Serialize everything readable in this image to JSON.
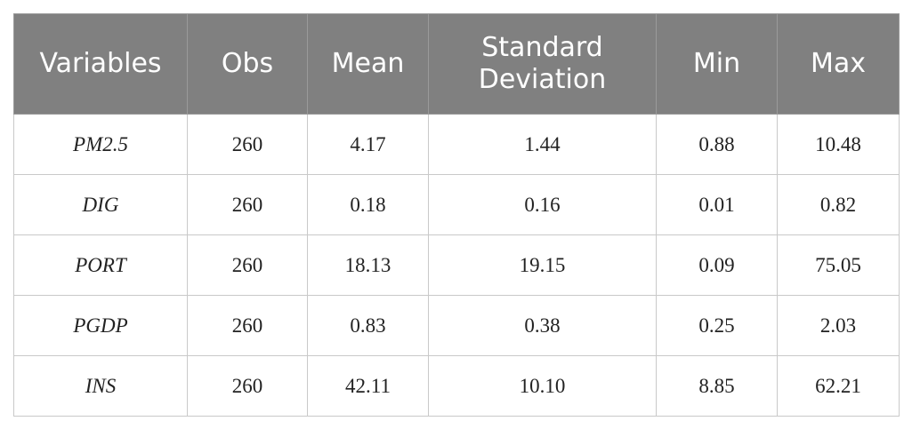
{
  "table": {
    "columns": [
      "Variables",
      "Obs",
      "Mean",
      "Standard Deviation",
      "Min",
      "Max"
    ],
    "rows": [
      {
        "variable": "PM2.5",
        "obs": "260",
        "mean": "4.17",
        "sd": "1.44",
        "min": "0.88",
        "max": "10.48"
      },
      {
        "variable": "DIG",
        "obs": "260",
        "mean": "0.18",
        "sd": "0.16",
        "min": "0.01",
        "max": "0.82"
      },
      {
        "variable": "PORT",
        "obs": "260",
        "mean": "18.13",
        "sd": "19.15",
        "min": "0.09",
        "max": "75.05"
      },
      {
        "variable": "PGDP",
        "obs": "260",
        "mean": "0.83",
        "sd": "0.38",
        "min": "0.25",
        "max": "2.03"
      },
      {
        "variable": "INS",
        "obs": "260",
        "mean": "42.11",
        "sd": "10.10",
        "min": "8.85",
        "max": "62.21"
      }
    ]
  },
  "colors": {
    "header_background": "#808080",
    "header_text": "#ffffff",
    "border": "#c9c9c9"
  }
}
